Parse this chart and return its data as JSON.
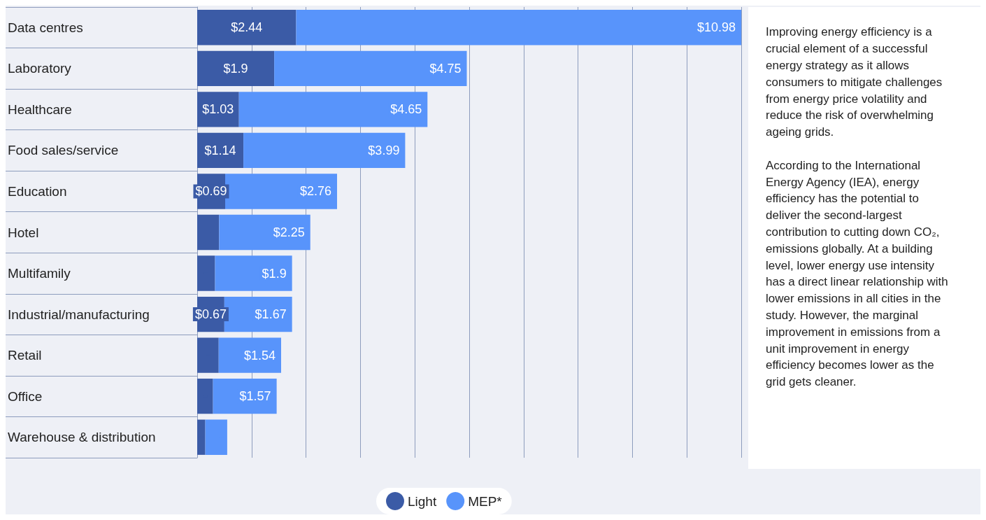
{
  "chart_data": {
    "type": "bar",
    "orientation": "horizontal",
    "stacked": true,
    "categories": [
      "Data centres",
      "Laboratory",
      "Healthcare",
      "Food sales/service",
      "Education",
      "Hotel",
      "Multifamily",
      "Industrial/manufacturing",
      "Retail",
      "Office",
      "Warehouse & distribution"
    ],
    "series": [
      {
        "name": "Light",
        "color": "#3b5ba6",
        "values": [
          2.44,
          1.9,
          1.03,
          1.14,
          0.69,
          0.54,
          0.44,
          0.67,
          0.53,
          0.39,
          0.2
        ],
        "value_labels": [
          "$2.44",
          "$1.9",
          "$1.03",
          "$1.14",
          "$0.69",
          null,
          null,
          "$0.67",
          null,
          null,
          null
        ]
      },
      {
        "name": "MEP*",
        "color": "#5894fb",
        "values": [
          10.98,
          4.75,
          4.65,
          3.99,
          2.76,
          2.25,
          1.9,
          1.67,
          1.54,
          1.57,
          0.54
        ],
        "value_labels": [
          "$10.98",
          "$4.75",
          "$4.65",
          "$3.99",
          "$2.76",
          "$2.25",
          "$1.9",
          "$1.67",
          "$1.54",
          "$1.57",
          null
        ]
      }
    ],
    "xlim": [
      0,
      13.42
    ],
    "xticks": [
      {
        "value": 0,
        "label": null
      },
      {
        "value": 1.342,
        "label": null
      },
      {
        "value": 2.684,
        "label": null
      },
      {
        "value": 4.026,
        "label": null
      },
      {
        "value": 5.368,
        "label": null
      },
      {
        "value": 6.71,
        "label": null
      },
      {
        "value": 8.052,
        "label": null
      },
      {
        "value": 9.394,
        "label": null
      },
      {
        "value": 10.736,
        "label": null
      },
      {
        "value": 12.078,
        "label": null
      },
      {
        "value": 13.42,
        "label": null
      }
    ],
    "tick_labels": "y",
    "grid": "x",
    "legend": "bottom",
    "annotations": [
      "Improving energy efficiency is a crucial element of a successful energy strategy as it allows consumers to mitigate challenges from energy price volatility and reduce the risk of overwhelming ageing grids.",
      "According to the International Energy Agency (IEA), energy efficiency has the potential to deliver the second-largest contribution to cutting down CO₂, emissions globally. At a building level, lower energy use intensity has a direct linear relationship with lower emissions in all cities in the study. However, the marginal improvement in emissions from a unit improvement in energy efficiency becomes lower as the grid gets cleaner."
    ]
  }
}
